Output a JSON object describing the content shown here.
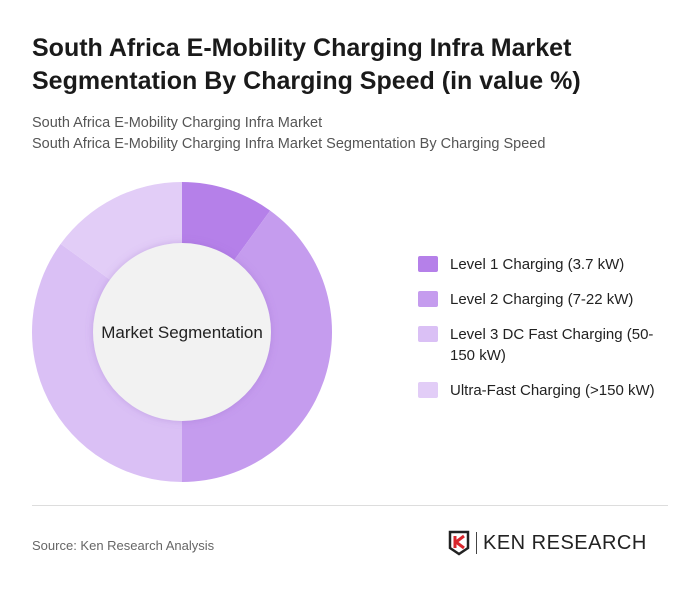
{
  "header": {
    "title": "South Africa E-Mobility Charging Infra Market Segmentation By Charging Speed (in value %)",
    "subtitle1": "South Africa E-Mobility Charging Infra Market",
    "subtitle2": "South Africa E-Mobility Charging Infra Market Segmentation By Charging Speed"
  },
  "chart_data": {
    "type": "pie",
    "donut": true,
    "center_label": "Market Segmentation",
    "legend_position": "right",
    "series": [
      {
        "name": "Level 1 Charging (3.7 kW)",
        "value": 10,
        "color": "#b580e9"
      },
      {
        "name": "Level 2 Charging (7-22 kW)",
        "value": 40,
        "color": "#c59cee"
      },
      {
        "name": "Level 3 DC Fast Charging (50-150 kW)",
        "value": 35,
        "color": "#dac0f5"
      },
      {
        "name": "Ultra-Fast Charging (>150 kW)",
        "value": 15,
        "color": "#e2cdf7"
      }
    ]
  },
  "footer": {
    "source": "Source: Ken Research Analysis",
    "logo_text": "KEN RESEARCH"
  }
}
